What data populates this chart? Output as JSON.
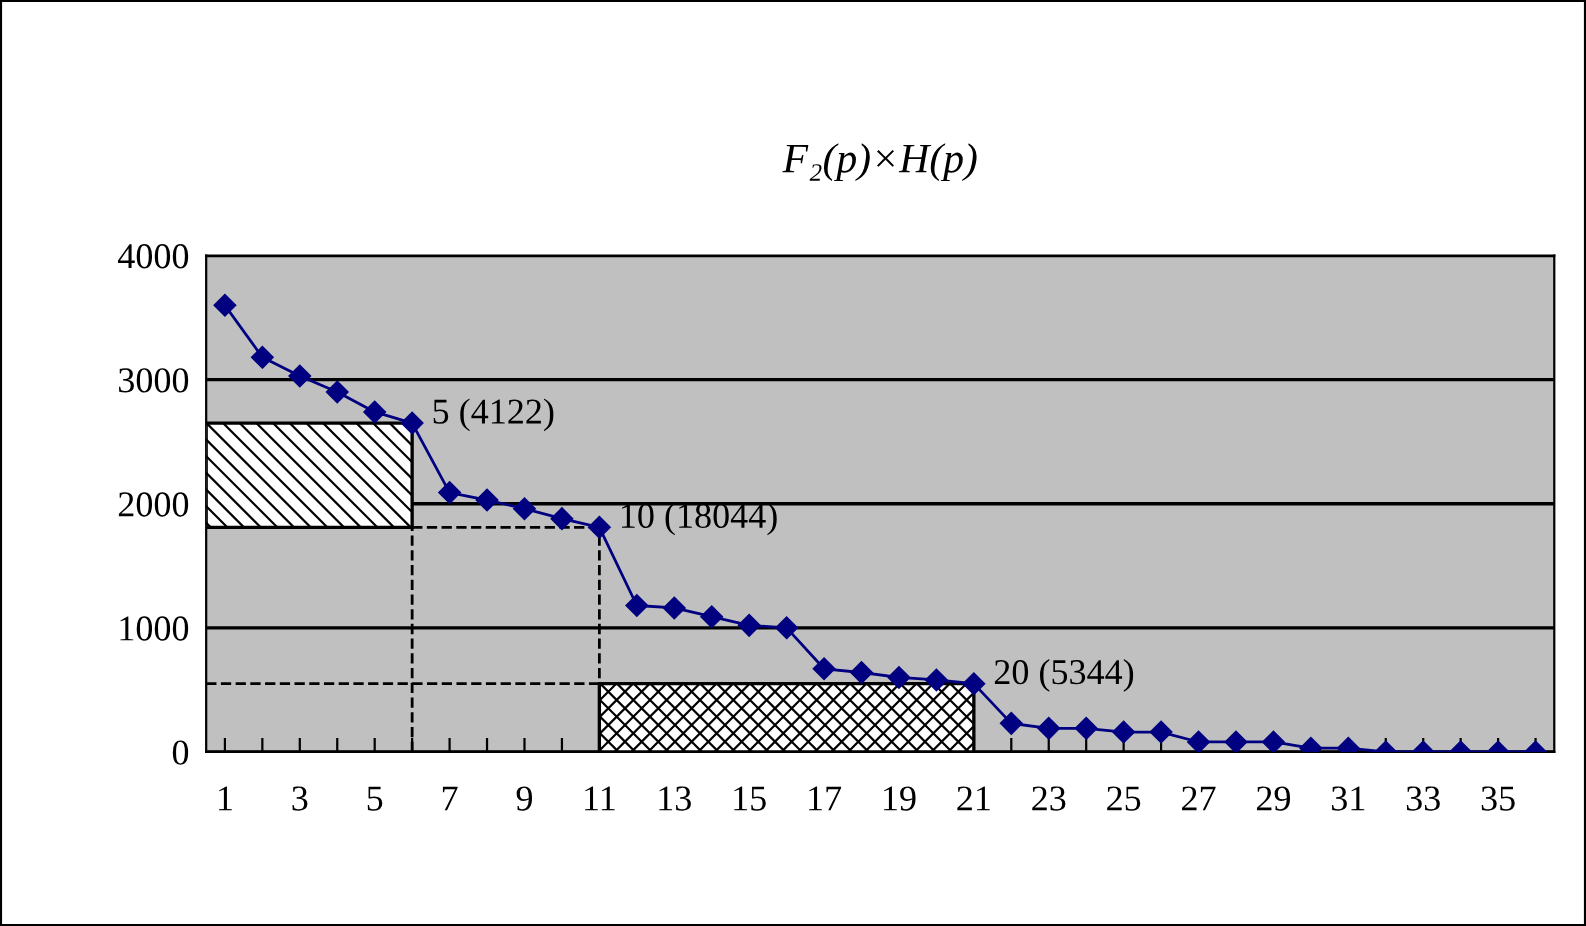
{
  "chart_data": {
    "type": "line",
    "title": "F₂(p)×H(p)",
    "x": [
      1,
      2,
      3,
      4,
      5,
      6,
      7,
      8,
      9,
      10,
      11,
      12,
      13,
      14,
      15,
      16,
      17,
      18,
      19,
      20,
      21,
      22,
      23,
      24,
      25,
      26,
      27,
      28,
      29,
      30,
      31,
      32,
      33,
      34,
      35,
      36
    ],
    "series": [
      {
        "color": "#000080",
        "values": [
          3600,
          3180,
          3030,
          2900,
          2740,
          2650,
          2090,
          2030,
          1960,
          1880,
          1810,
          1180,
          1160,
          1090,
          1020,
          1000,
          670,
          640,
          600,
          580,
          550,
          230,
          190,
          190,
          160,
          160,
          80,
          80,
          80,
          30,
          30,
          0,
          0,
          0,
          0,
          0
        ]
      }
    ],
    "xlim": [
      0.5,
      36.5
    ],
    "xticks": [
      1,
      {
        "value": 2,
        "label": null
      },
      3,
      {
        "value": 4,
        "label": null
      },
      5,
      {
        "value": 6,
        "label": null
      },
      7,
      {
        "value": 8,
        "label": null
      },
      9,
      {
        "value": 10,
        "label": null
      },
      11,
      {
        "value": 12,
        "label": null
      },
      13,
      {
        "value": 14,
        "label": null
      },
      15,
      {
        "value": 16,
        "label": null
      },
      17,
      {
        "value": 18,
        "label": null
      },
      19,
      {
        "value": 20,
        "label": null
      },
      21,
      {
        "value": 22,
        "label": null
      },
      23,
      {
        "value": 24,
        "label": null
      },
      25,
      {
        "value": 26,
        "label": null
      },
      27,
      {
        "value": 28,
        "label": null
      },
      29,
      {
        "value": 30,
        "label": null
      },
      31,
      {
        "value": 32,
        "label": null
      },
      33,
      {
        "value": 34,
        "label": null
      },
      35,
      {
        "value": 36,
        "label": null
      }
    ],
    "ylim": [
      0,
      4000
    ],
    "yticks": [
      0,
      1000,
      2000,
      3000,
      4000
    ],
    "grid": "y",
    "marker": "diamond",
    "line_style": "solid",
    "legend": false,
    "annotations": [
      {
        "text": "5 (4122)",
        "x": 6,
        "y": 2650
      },
      {
        "text": "10 (18044)",
        "x": 11,
        "y": 1810
      },
      {
        "text": "20 (5344)",
        "x": 21,
        "y": 550
      }
    ]
  }
}
